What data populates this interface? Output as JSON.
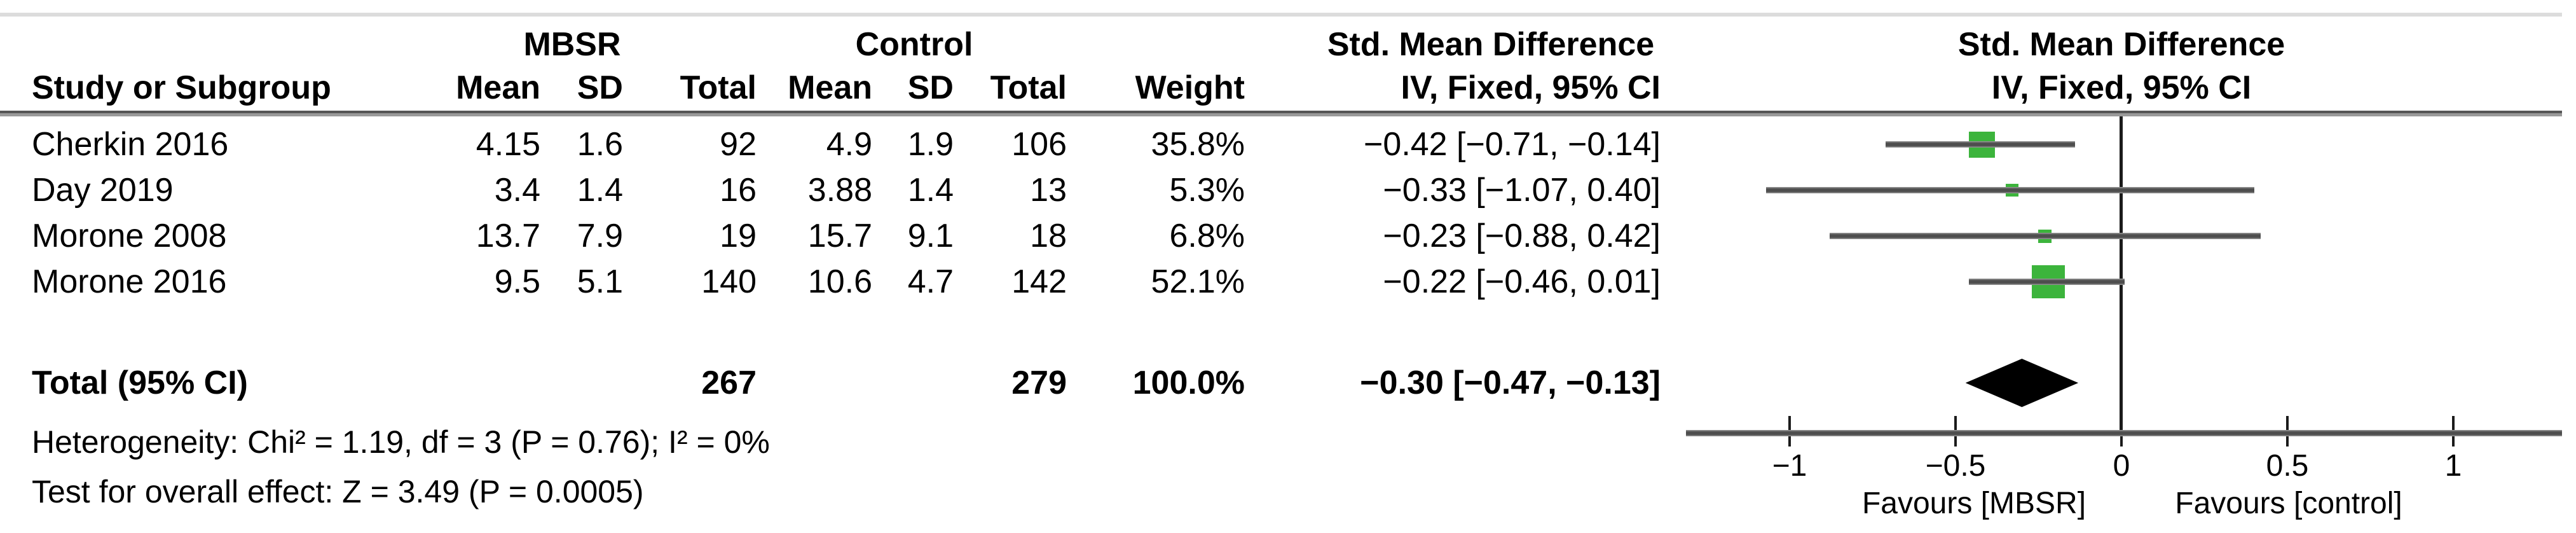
{
  "figure": {
    "group_headers": {
      "mbsr": "MBSR",
      "control": "Control",
      "smd_table": "Std. Mean Difference",
      "smd_plot": "Std. Mean Difference"
    },
    "column_headers": {
      "study": "Study or Subgroup",
      "mean1": "Mean",
      "sd1": "SD",
      "total1": "Total",
      "mean2": "Mean",
      "sd2": "SD",
      "total2": "Total",
      "weight": "Weight",
      "iv_table": "IV, Fixed, 95% CI",
      "iv_plot": "IV, Fixed, 95% CI"
    },
    "footers": {
      "heterogeneity": "Heterogeneity: Chi² = 1.19, df = 3 (P = 0.76); I² = 0%",
      "overall_effect": "Test for overall effect: Z = 3.49 (P = 0.0005)"
    }
  },
  "chart_data": {
    "type": "forest",
    "title": "Std. Mean Difference",
    "model": "IV, Fixed, 95% CI",
    "studies": [
      {
        "name": "Cherkin 2016",
        "mbsr_mean": 4.15,
        "mbsr_sd": 1.6,
        "mbsr_total": 92,
        "control_mean": 4.9,
        "control_sd": 1.9,
        "control_total": 106,
        "weight_pct": 35.8,
        "weight_text": "35.8%",
        "estimate": -0.42,
        "ci_low": -0.71,
        "ci_high": -0.14,
        "ci_text": "−0.42 [−0.71, −0.14]"
      },
      {
        "name": "Day 2019",
        "mbsr_mean": 3.4,
        "mbsr_sd": 1.4,
        "mbsr_total": 16,
        "control_mean": 3.88,
        "control_sd": 1.4,
        "control_total": 13,
        "weight_pct": 5.3,
        "weight_text": "5.3%",
        "estimate": -0.33,
        "ci_low": -1.07,
        "ci_high": 0.4,
        "ci_text": "−0.33 [−1.07, 0.40]"
      },
      {
        "name": "Morone 2008",
        "mbsr_mean": 13.7,
        "mbsr_sd": 7.9,
        "mbsr_total": 19,
        "control_mean": 15.7,
        "control_sd": 9.1,
        "control_total": 18,
        "weight_pct": 6.8,
        "weight_text": "6.8%",
        "estimate": -0.23,
        "ci_low": -0.88,
        "ci_high": 0.42,
        "ci_text": "−0.23 [−0.88, 0.42]"
      },
      {
        "name": "Morone 2016",
        "mbsr_mean": 9.5,
        "mbsr_sd": 5.1,
        "mbsr_total": 140,
        "control_mean": 10.6,
        "control_sd": 4.7,
        "control_total": 142,
        "weight_pct": 52.1,
        "weight_text": "52.1%",
        "estimate": -0.22,
        "ci_low": -0.46,
        "ci_high": 0.01,
        "ci_text": "−0.22 [−0.46, 0.01]"
      }
    ],
    "total": {
      "label": "Total (95% CI)",
      "mbsr_total": 267,
      "control_total": 279,
      "weight_text": "100.0%",
      "estimate": -0.3,
      "ci_low": -0.47,
      "ci_high": -0.13,
      "ci_text": "−0.30 [−0.47, −0.13]"
    },
    "axis": {
      "ticks": [
        -1,
        -0.5,
        0,
        0.5,
        1
      ],
      "tick_labels": [
        "−1",
        "−0.5",
        "0",
        "0.5",
        "1"
      ],
      "xlim": [
        -1.31,
        1.33
      ],
      "zero_line": 0,
      "grid": false
    },
    "favours": {
      "left": "Favours [MBSR]",
      "right": "Favours [control]"
    },
    "colors": {
      "marker_green": "#3cb43c",
      "ci_line": "#555555",
      "diamond": "#000000",
      "axis_line": "#8a8a8a",
      "separator": "#6e6e6e",
      "top_border": "#dcdcdc",
      "text": "#000000"
    }
  }
}
